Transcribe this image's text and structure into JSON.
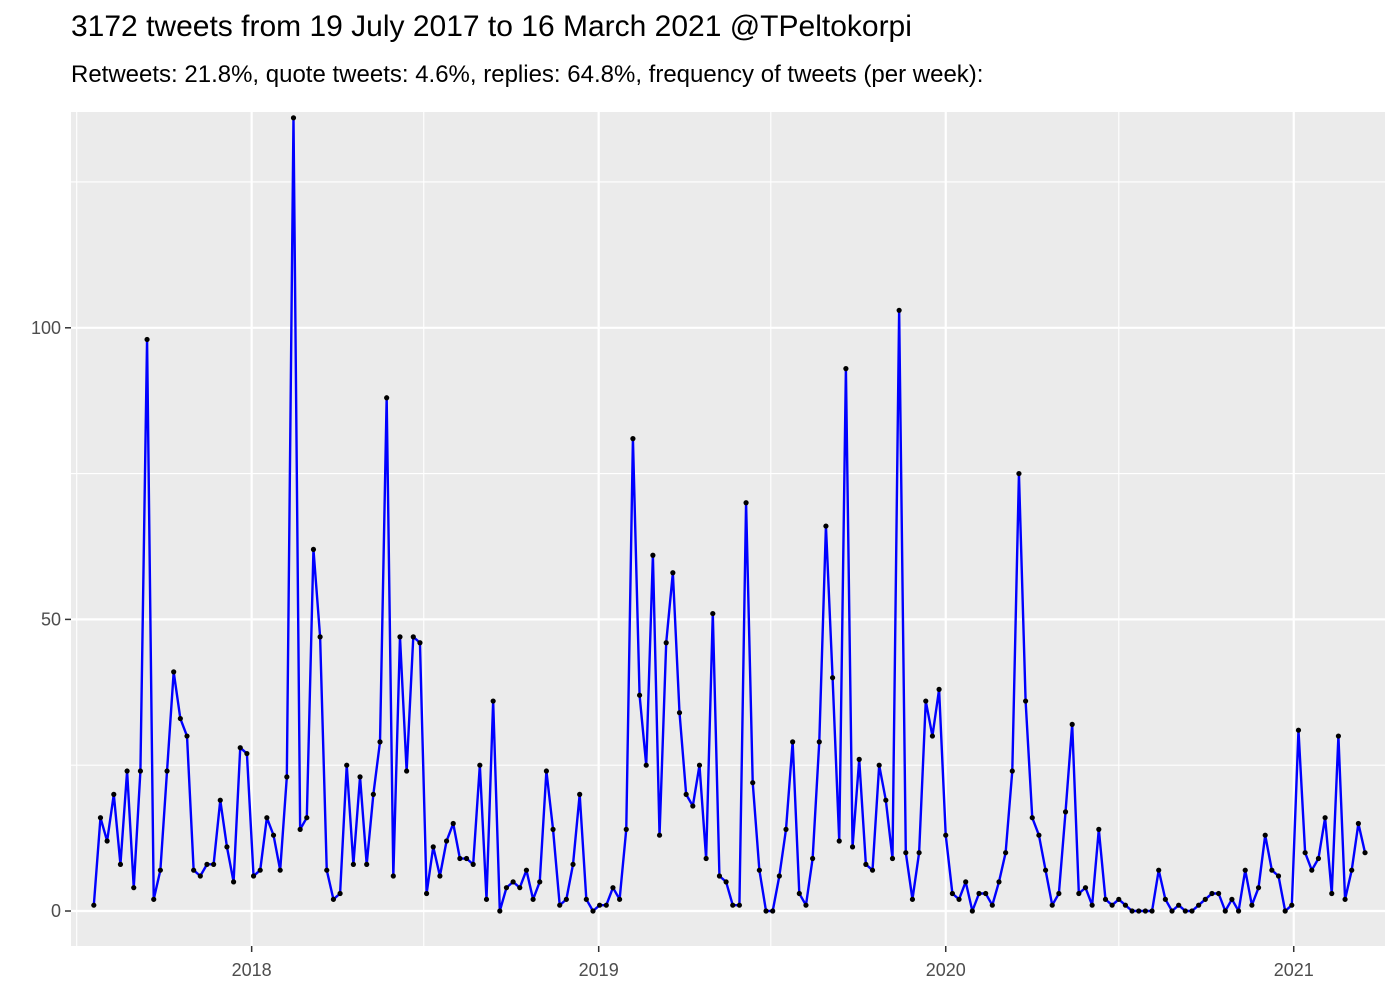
{
  "chart_data": {
    "type": "line",
    "title": "3172 tweets from 19 July 2017 to 16 March 2021 @TPeltokorpi",
    "subtitle": "Retweets: 21.8%, quote tweets: 4.6%, replies: 64.8%, frequency of tweets (per week):",
    "xlabel": "",
    "ylabel": "",
    "x_ticks": [
      "2018",
      "2019",
      "2020",
      "2021"
    ],
    "y_ticks": [
      0,
      50,
      100
    ],
    "ylim": [
      -6,
      137
    ],
    "xlim": [
      "2017-06-25",
      "2021-04-07"
    ],
    "grid": true,
    "legend": "none",
    "colors": {
      "line": "#0000ff",
      "points": "#000000",
      "panel": "#ebebeb",
      "grid": "#ffffff"
    },
    "series": [
      {
        "start_date": "2017-07-19",
        "interval_days": 7,
        "values": [
          1,
          16,
          12,
          20,
          8,
          24,
          4,
          24,
          98,
          2,
          7,
          24,
          41,
          33,
          30,
          7,
          6,
          8,
          8,
          19,
          11,
          5,
          28,
          27,
          6,
          7,
          16,
          13,
          7,
          23,
          136,
          14,
          16,
          62,
          47,
          7,
          2,
          3,
          25,
          8,
          23,
          8,
          20,
          29,
          88,
          6,
          47,
          24,
          47,
          46,
          3,
          11,
          6,
          12,
          15,
          9,
          9,
          8,
          25,
          2,
          36,
          0,
          4,
          5,
          4,
          7,
          2,
          5,
          24,
          14,
          1,
          2,
          8,
          20,
          2,
          0,
          1,
          1,
          4,
          2,
          14,
          81,
          37,
          25,
          61,
          13,
          46,
          58,
          34,
          20,
          18,
          25,
          9,
          51,
          6,
          5,
          1,
          1,
          70,
          22,
          7,
          0,
          0,
          6,
          14,
          29,
          3,
          1,
          9,
          29,
          66,
          40,
          12,
          93,
          11,
          26,
          8,
          7,
          25,
          19,
          9,
          103,
          10,
          2,
          10,
          36,
          30,
          38,
          13,
          3,
          2,
          5,
          0,
          3,
          3,
          1,
          5,
          10,
          24,
          75,
          36,
          16,
          13,
          7,
          1,
          3,
          17,
          32,
          3,
          4,
          1,
          14,
          2,
          1,
          2,
          1,
          0,
          0,
          0,
          0,
          7,
          2,
          0,
          1,
          0,
          0,
          1,
          2,
          3,
          3,
          0,
          2,
          0,
          7,
          1,
          4,
          13,
          7,
          6,
          0,
          1,
          31,
          10,
          7,
          9,
          16,
          3,
          30,
          2,
          7,
          15,
          10
        ]
      }
    ]
  }
}
